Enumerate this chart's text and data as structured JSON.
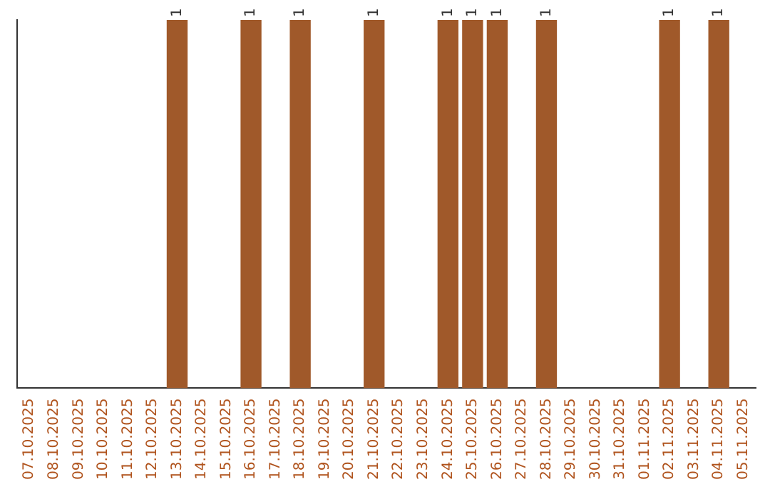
{
  "chart_data": {
    "type": "bar",
    "categories": [
      "07.10.2025",
      "08.10.2025",
      "09.10.2025",
      "10.10.2025",
      "11.10.2025",
      "12.10.2025",
      "13.10.2025",
      "14.10.2025",
      "15.10.2025",
      "16.10.2025",
      "17.10.2025",
      "18.10.2025",
      "19.10.2025",
      "20.10.2025",
      "21.10.2025",
      "22.10.2025",
      "23.10.2025",
      "24.10.2025",
      "25.10.2025",
      "26.10.2025",
      "27.10.2025",
      "28.10.2025",
      "29.10.2025",
      "30.10.2025",
      "31.10.2025",
      "01.11.2025",
      "02.11.2025",
      "03.11.2025",
      "04.11.2025",
      "05.11.2025"
    ],
    "values": [
      0,
      0,
      0,
      0,
      0,
      0,
      1,
      0,
      0,
      1,
      0,
      1,
      0,
      0,
      1,
      0,
      0,
      1,
      1,
      1,
      0,
      1,
      0,
      0,
      0,
      0,
      1,
      0,
      1,
      0
    ],
    "value_labels": [
      null,
      null,
      null,
      null,
      null,
      null,
      "1",
      null,
      null,
      "1",
      null,
      "1",
      null,
      null,
      "1",
      null,
      null,
      "1",
      "1",
      "1",
      null,
      "1",
      null,
      null,
      null,
      null,
      "1",
      null,
      "1",
      null
    ],
    "color": "#a0592a",
    "grid": false,
    "legend": false,
    "tick_labels": "x"
  }
}
